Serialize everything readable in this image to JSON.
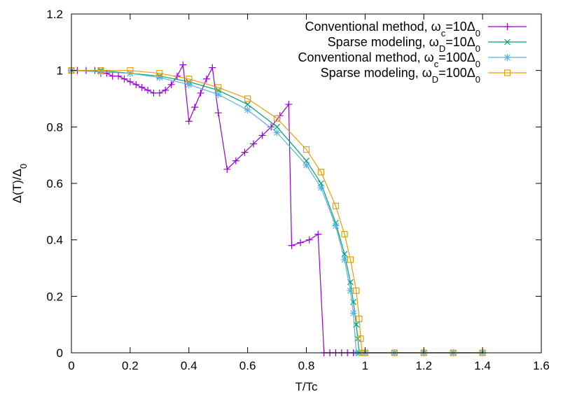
{
  "chart_data": {
    "type": "line",
    "title": "",
    "xlabel": "T/Tc",
    "ylabel_parts": [
      "Δ(T)/Δ",
      "0"
    ],
    "xlim": [
      0,
      1.6
    ],
    "ylim": [
      0,
      1.2
    ],
    "xticks": [
      0,
      0.2,
      0.4,
      0.6,
      0.8,
      1,
      1.2,
      1.4,
      1.6
    ],
    "xtick_labels": [
      "0",
      "0.2",
      "0.4",
      "0.6",
      "0.8",
      "1",
      "1.2",
      "1.4",
      "1.6"
    ],
    "yticks": [
      0,
      0.2,
      0.4,
      0.6,
      0.8,
      1,
      1.2
    ],
    "ytick_labels": [
      "0",
      "0.2",
      "0.4",
      "0.6",
      "0.8",
      "1",
      "1.2"
    ],
    "grid": false,
    "legend_position": "top-right",
    "series": [
      {
        "name_parts": [
          "Conventional method, ω",
          "c",
          "=10Δ",
          "0"
        ],
        "color": "#9400d3",
        "marker": "plus",
        "x": [
          0.0,
          0.02,
          0.05,
          0.08,
          0.1,
          0.12,
          0.14,
          0.16,
          0.18,
          0.2,
          0.22,
          0.24,
          0.26,
          0.28,
          0.3,
          0.32,
          0.34,
          0.36,
          0.38,
          0.4,
          0.42,
          0.44,
          0.46,
          0.48,
          0.5,
          0.53,
          0.56,
          0.59,
          0.62,
          0.65,
          0.68,
          0.71,
          0.74,
          0.75,
          0.78,
          0.81,
          0.84,
          0.86,
          0.88,
          0.9,
          0.92,
          0.94,
          0.96,
          1.0,
          1.1,
          1.2,
          1.3,
          1.4
        ],
        "y": [
          1.0,
          1.0,
          1.0,
          1.0,
          0.99,
          0.99,
          0.98,
          0.98,
          0.97,
          0.96,
          0.95,
          0.94,
          0.93,
          0.92,
          0.92,
          0.93,
          0.95,
          0.98,
          1.02,
          0.82,
          0.87,
          0.92,
          0.97,
          1.01,
          0.85,
          0.65,
          0.68,
          0.71,
          0.74,
          0.77,
          0.8,
          0.84,
          0.88,
          0.38,
          0.39,
          0.4,
          0.42,
          0.0,
          0.0,
          0.0,
          0.0,
          0.0,
          0.0,
          0.0,
          0.0,
          0.0,
          0.0,
          0.0
        ]
      },
      {
        "name_parts": [
          "Sparse modeling, ω",
          "D",
          "=10Δ",
          "0"
        ],
        "color": "#009e73",
        "marker": "x",
        "x": [
          0.0,
          0.1,
          0.2,
          0.3,
          0.4,
          0.5,
          0.6,
          0.7,
          0.8,
          0.85,
          0.9,
          0.93,
          0.95,
          0.96,
          0.97,
          0.975,
          0.98,
          1.0,
          1.1,
          1.2,
          1.3,
          1.4
        ],
        "y": [
          1.0,
          1.0,
          0.99,
          0.98,
          0.96,
          0.93,
          0.88,
          0.8,
          0.68,
          0.6,
          0.46,
          0.35,
          0.25,
          0.18,
          0.1,
          0.05,
          0.0,
          0.0,
          0.0,
          0.0,
          0.0,
          0.0
        ]
      },
      {
        "name_parts": [
          "Conventional method, ω",
          "c",
          "=100Δ",
          "0"
        ],
        "color": "#56b4e9",
        "marker": "star",
        "x": [
          0.0,
          0.1,
          0.2,
          0.3,
          0.4,
          0.5,
          0.6,
          0.7,
          0.8,
          0.85,
          0.9,
          0.93,
          0.95,
          0.96,
          0.97,
          1.0,
          1.1,
          1.2,
          1.3,
          1.4
        ],
        "y": [
          1.0,
          0.995,
          0.99,
          0.975,
          0.95,
          0.915,
          0.86,
          0.78,
          0.665,
          0.585,
          0.45,
          0.33,
          0.22,
          0.14,
          0.0,
          0.0,
          0.0,
          0.0,
          0.0,
          0.0
        ]
      },
      {
        "name_parts": [
          "Sparse modeling, ω",
          "D",
          "=100Δ",
          "0"
        ],
        "color": "#e69f00",
        "marker": "square",
        "x": [
          0.0,
          0.1,
          0.2,
          0.3,
          0.4,
          0.5,
          0.6,
          0.7,
          0.8,
          0.85,
          0.9,
          0.93,
          0.95,
          0.97,
          0.98,
          0.985,
          0.99,
          1.0,
          1.1,
          1.2,
          1.3,
          1.4
        ],
        "y": [
          1.0,
          1.0,
          1.0,
          0.99,
          0.97,
          0.94,
          0.9,
          0.83,
          0.72,
          0.64,
          0.52,
          0.42,
          0.33,
          0.22,
          0.12,
          0.05,
          0.0,
          0.0,
          0.0,
          0.0,
          0.0,
          0.0
        ]
      }
    ]
  }
}
